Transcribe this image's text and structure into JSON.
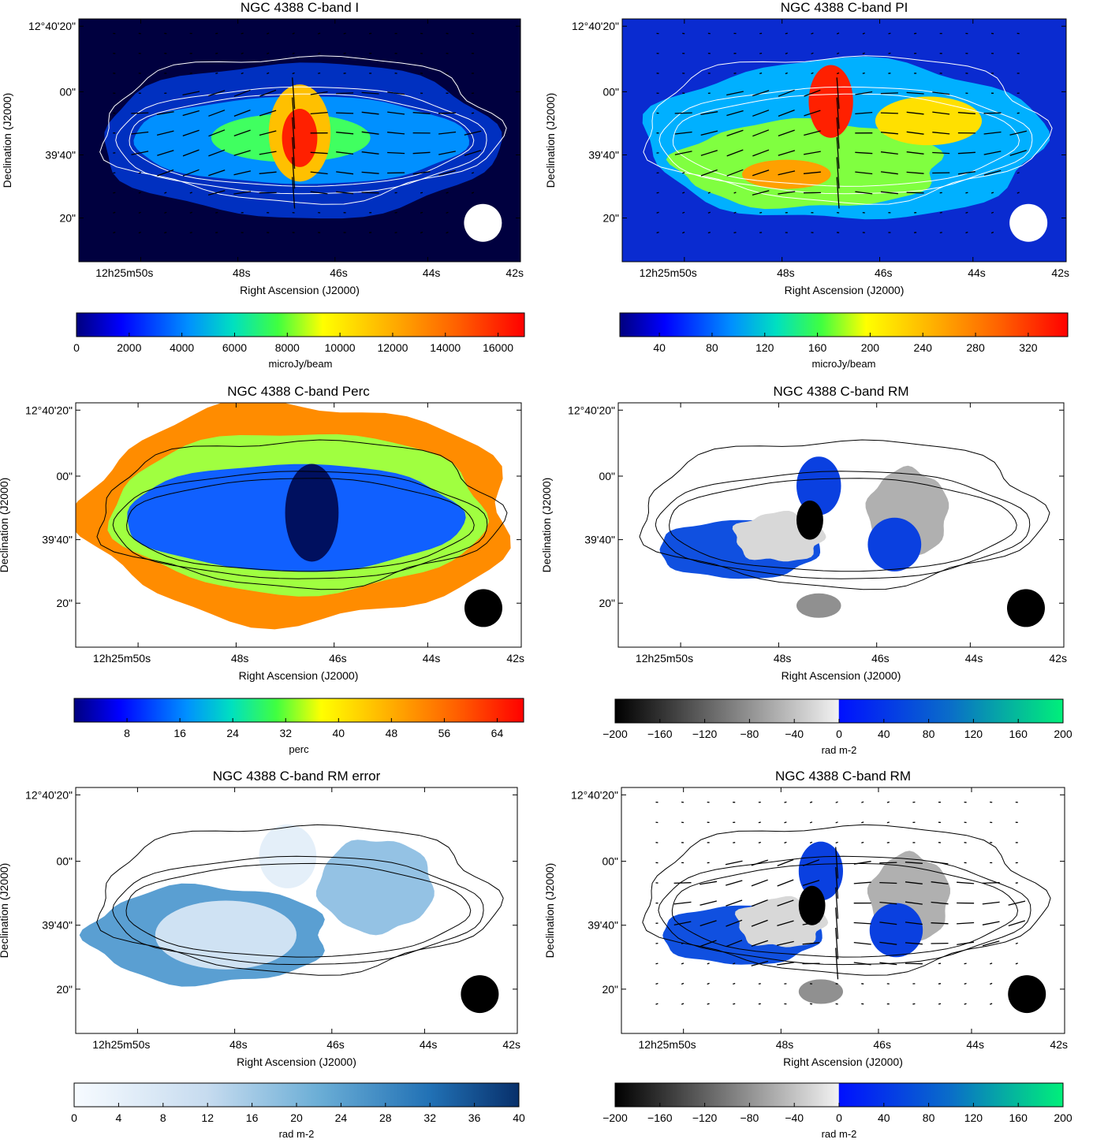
{
  "figure": {
    "panels": [
      {
        "id": "I",
        "title": "NGC 4388   C-band   I",
        "xlabel": "Right Ascension (J2000)",
        "ylabel": "Declination (J2000)",
        "xticks": [
          "12h25m50s",
          "48s",
          "46s",
          "44s",
          "42s"
        ],
        "yticks": [
          "12°40'20\"",
          "00\"",
          "39'40\"",
          "20\""
        ],
        "map": "intensity",
        "background": "#00003f",
        "contour_color": "#ffffff",
        "beam_color": "#ffffff",
        "vectors": true,
        "colorbar": {
          "cmap": "jet",
          "ticks": [
            "0",
            "2000",
            "4000",
            "6000",
            "8000",
            "10000",
            "12000",
            "14000",
            "16000"
          ],
          "range": [
            0,
            17000
          ],
          "label": "microJy/beam"
        }
      },
      {
        "id": "PI",
        "title": "NGC 4388   C-band   PI",
        "xlabel": "Right Ascension (J2000)",
        "ylabel": "Declination (J2000)",
        "xticks": [
          "12h25m50s",
          "48s",
          "46s",
          "44s",
          "42s"
        ],
        "yticks": [
          "12°40'20\"",
          "00\"",
          "39'40\"",
          "20\""
        ],
        "map": "polarized",
        "background": "#0a2bd0",
        "contour_color": "#ffffff",
        "beam_color": "#ffffff",
        "vectors": true,
        "colorbar": {
          "cmap": "jet",
          "ticks": [
            "40",
            "80",
            "120",
            "160",
            "200",
            "240",
            "280",
            "320"
          ],
          "range": [
            10,
            350
          ],
          "label": "microJy/beam"
        }
      },
      {
        "id": "Perc",
        "title": "NGC 4388   C-band   Perc",
        "xlabel": "Right Ascension (J2000)",
        "ylabel": "Declination (J2000)",
        "xticks": [
          "12h25m50s",
          "48s",
          "46s",
          "44s",
          "42s"
        ],
        "yticks": [
          "12°40'20\"",
          "00\"",
          "39'40\"",
          "20\""
        ],
        "map": "percentage",
        "background": "#ffffff",
        "contour_color": "#000000",
        "beam_color": "#000000",
        "vectors": false,
        "colorbar": {
          "cmap": "jet",
          "ticks": [
            "8",
            "16",
            "24",
            "32",
            "40",
            "48",
            "56",
            "64"
          ],
          "range": [
            0,
            68
          ],
          "label": "perc"
        }
      },
      {
        "id": "RM",
        "title": "NGC 4388   C-band   RM",
        "xlabel": "Right Ascension (J2000)",
        "ylabel": "Declination (J2000)",
        "xticks": [
          "12h25m50s",
          "48s",
          "46s",
          "44s",
          "42s"
        ],
        "yticks": [
          "12°40'20\"",
          "00\"",
          "39'40\"",
          "20\""
        ],
        "map": "rm",
        "background": "#ffffff",
        "contour_color": "#000000",
        "beam_color": "#000000",
        "vectors": false,
        "colorbar": {
          "cmap": "rm",
          "ticks": [
            "−200",
            "−160",
            "−120",
            "−80",
            "−40",
            "0",
            "40",
            "80",
            "120",
            "160",
            "200"
          ],
          "range": [
            -200,
            200
          ],
          "label": "rad m-2"
        }
      },
      {
        "id": "RMerr",
        "title": "NGC 4388   C-band   RM error",
        "xlabel": "Right Ascension (J2000)",
        "ylabel": "Declination (J2000)",
        "xticks": [
          "12h25m50s",
          "48s",
          "46s",
          "44s",
          "42s"
        ],
        "yticks": [
          "12°40'20\"",
          "00\"",
          "39'40\"",
          "20\""
        ],
        "map": "rmerr",
        "background": "#ffffff",
        "contour_color": "#000000",
        "beam_color": "#000000",
        "vectors": false,
        "colorbar": {
          "cmap": "blues",
          "ticks": [
            "0",
            "4",
            "8",
            "12",
            "16",
            "20",
            "24",
            "28",
            "32",
            "36",
            "40"
          ],
          "range": [
            0,
            40
          ],
          "label": "rad m-2"
        }
      },
      {
        "id": "RMvec",
        "title": "NGC 4388   C-band   RM",
        "xlabel": "Right Ascension (J2000)",
        "ylabel": "Declination (J2000)",
        "xticks": [
          "12h25m50s",
          "48s",
          "46s",
          "44s",
          "42s"
        ],
        "yticks": [
          "12°40'20\"",
          "00\"",
          "39'40\"",
          "20\""
        ],
        "map": "rm",
        "background": "#ffffff",
        "contour_color": "#000000",
        "beam_color": "#000000",
        "vectors": true,
        "colorbar": {
          "cmap": "rm",
          "ticks": [
            "−200",
            "−160",
            "−120",
            "−80",
            "−40",
            "0",
            "40",
            "80",
            "120",
            "160",
            "200"
          ],
          "range": [
            -200,
            200
          ],
          "label": "rad m-2"
        }
      }
    ]
  },
  "chart_data": [
    {
      "type": "heatmap",
      "title": "NGC 4388   C-band   I",
      "xlabel": "Right Ascension (J2000)",
      "ylabel": "Declination (J2000)",
      "colorbar_label": "microJy/beam",
      "colorbar_range": [
        0,
        17000
      ],
      "overlays": [
        "white total-intensity contours",
        "polarization B-vectors",
        "beam (white disc)"
      ]
    },
    {
      "type": "heatmap",
      "title": "NGC 4388   C-band   PI",
      "xlabel": "Right Ascension (J2000)",
      "ylabel": "Declination (J2000)",
      "colorbar_label": "microJy/beam",
      "colorbar_range": [
        10,
        350
      ],
      "overlays": [
        "white total-intensity contours",
        "polarization B-vectors",
        "beam (white disc)"
      ]
    },
    {
      "type": "heatmap",
      "title": "NGC 4388   C-band   Perc",
      "xlabel": "Right Ascension (J2000)",
      "ylabel": "Declination (J2000)",
      "colorbar_label": "perc",
      "colorbar_range": [
        0,
        68
      ],
      "overlays": [
        "black contours",
        "beam (black disc)"
      ]
    },
    {
      "type": "heatmap",
      "title": "NGC 4388   C-band   RM",
      "xlabel": "Right Ascension (J2000)",
      "ylabel": "Declination (J2000)",
      "colorbar_label": "rad m-2",
      "colorbar_range": [
        -200,
        200
      ],
      "overlays": [
        "black contours",
        "beam (black disc)"
      ]
    },
    {
      "type": "heatmap",
      "title": "NGC 4388   C-band   RM error",
      "xlabel": "Right Ascension (J2000)",
      "ylabel": "Declination (J2000)",
      "colorbar_label": "rad m-2",
      "colorbar_range": [
        0,
        40
      ],
      "overlays": [
        "black contours",
        "beam (black disc)"
      ]
    },
    {
      "type": "heatmap",
      "title": "NGC 4388   C-band   RM",
      "xlabel": "Right Ascension (J2000)",
      "ylabel": "Declination (J2000)",
      "colorbar_label": "rad m-2",
      "colorbar_range": [
        -200,
        200
      ],
      "overlays": [
        "black contours",
        "polarization B-vectors",
        "beam (black disc)"
      ]
    }
  ]
}
